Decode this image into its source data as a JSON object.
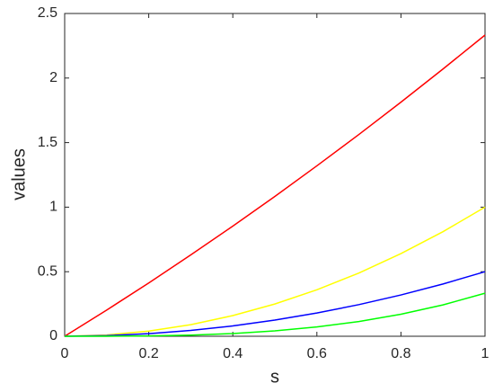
{
  "chart_data": {
    "type": "line",
    "x_label": "s",
    "y_label": "values",
    "x": [
      0,
      0.1,
      0.2,
      0.3,
      0.4,
      0.5,
      0.6,
      0.7,
      0.8,
      0.9,
      1
    ],
    "series": [
      {
        "color": "#ff0000",
        "values": [
          0,
          0.203,
          0.413,
          0.63,
          0.853,
          1.083,
          1.32,
          1.563,
          1.813,
          2.07,
          2.333
        ]
      },
      {
        "color": "#ffff00",
        "values": [
          0,
          0.01,
          0.04,
          0.09,
          0.16,
          0.25,
          0.36,
          0.49,
          0.64,
          0.81,
          1
        ]
      },
      {
        "color": "#0000ff",
        "values": [
          0,
          0.005,
          0.02,
          0.045,
          0.08,
          0.125,
          0.18,
          0.245,
          0.32,
          0.405,
          0.5
        ]
      },
      {
        "color": "#00ff00",
        "values": [
          0,
          0.0003,
          0.0027,
          0.009,
          0.0213,
          0.0417,
          0.072,
          0.1143,
          0.1707,
          0.243,
          0.3333
        ]
      }
    ],
    "xlim": [
      0,
      1
    ],
    "xticks": [
      0,
      0.2,
      0.4,
      0.6,
      0.8,
      1
    ],
    "ylim": [
      0,
      2.5
    ],
    "yticks": [
      0,
      0.5,
      1,
      1.5,
      2,
      2.5
    ],
    "grid": false
  }
}
